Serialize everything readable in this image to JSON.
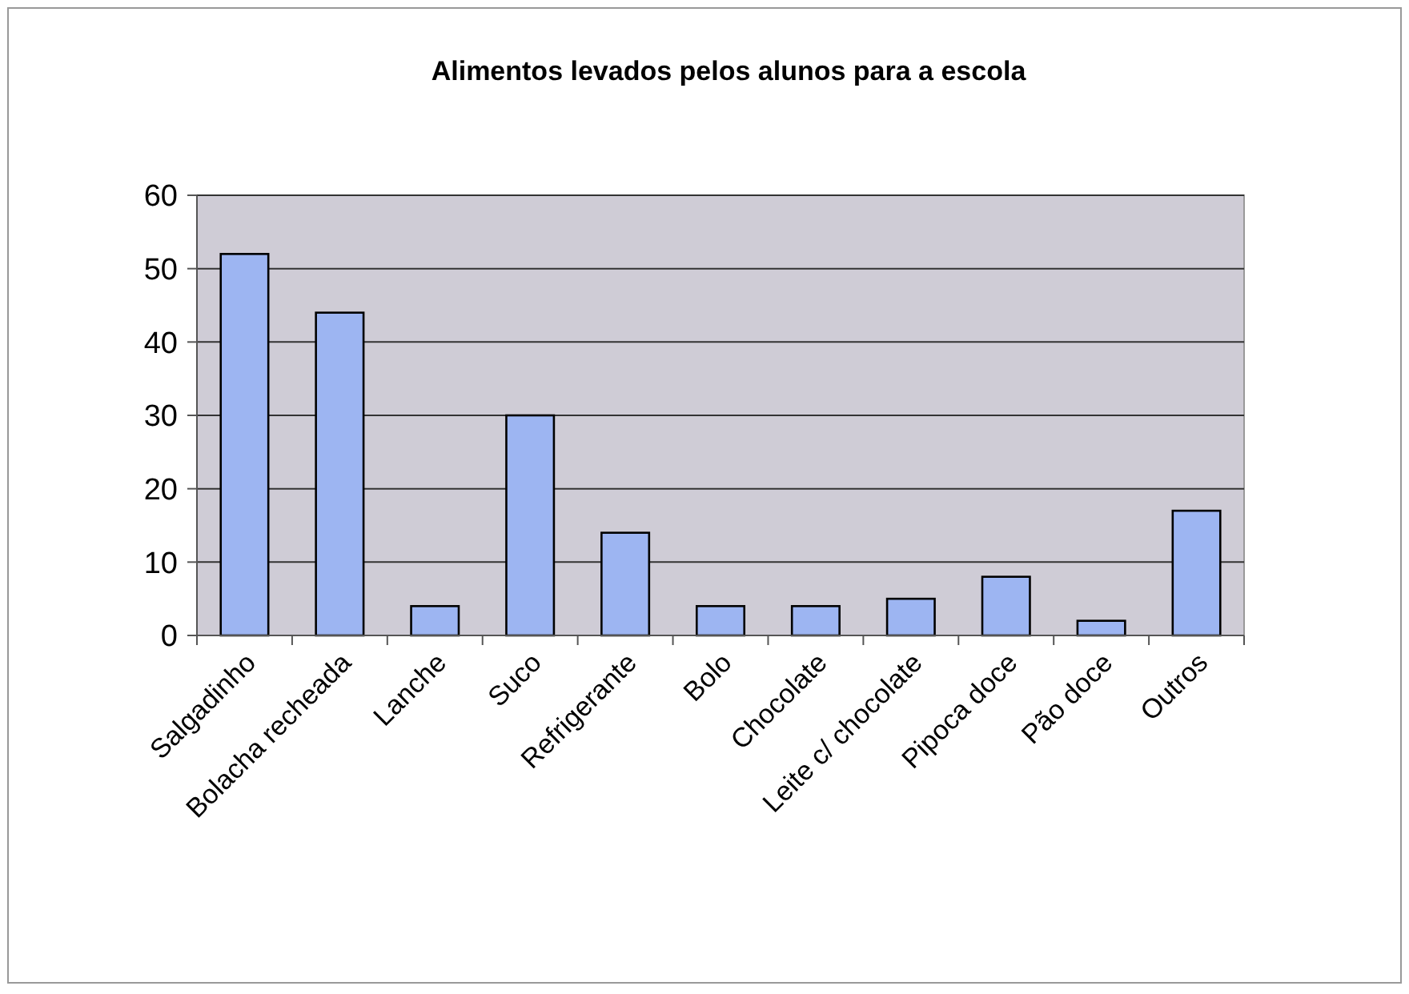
{
  "chart_data": {
    "type": "bar",
    "title": "Alimentos levados pelos alunos para a escola",
    "categories": [
      "Salgadinho",
      "Bolacha recheada",
      "Lanche",
      "Suco",
      "Refrigerante",
      "Bolo",
      "Chocolate",
      "Leite c/ chocolate",
      "Pipoca doce",
      "Pão doce",
      "Outros"
    ],
    "values": [
      52,
      44,
      4,
      30,
      14,
      4,
      4,
      5,
      8,
      2,
      17
    ],
    "color": "#9db5f2",
    "ylim": [
      0,
      60
    ],
    "yticks": [
      0,
      10,
      20,
      30,
      40,
      50,
      60
    ],
    "grid": "y"
  }
}
